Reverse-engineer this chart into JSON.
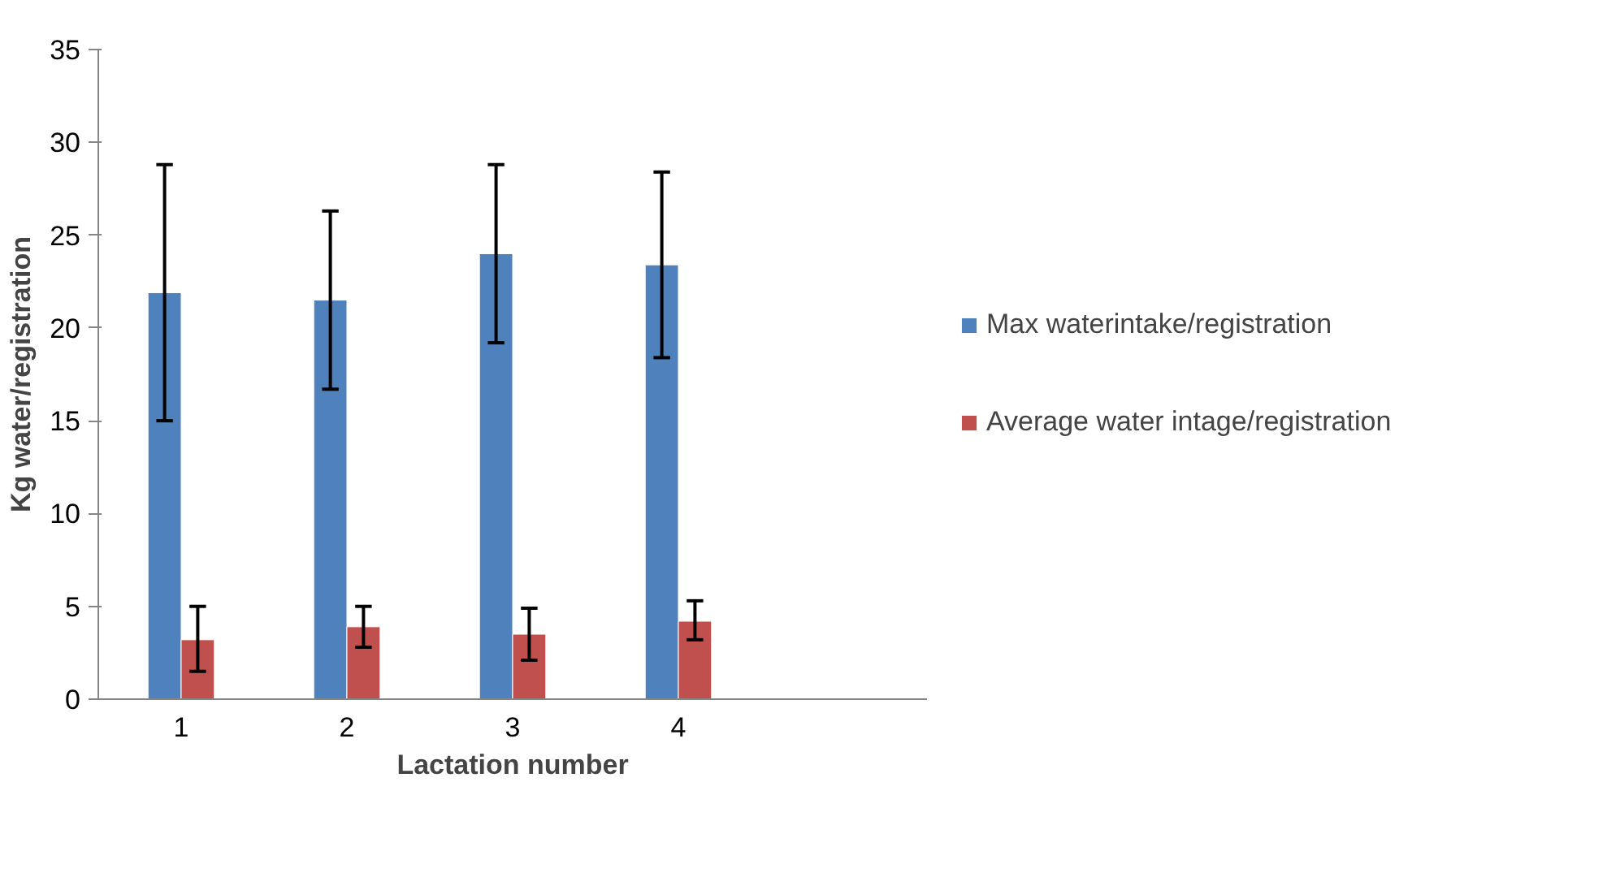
{
  "chart_data": {
    "type": "bar",
    "xlabel": "Lactation number",
    "ylabel": "Kg water/registration",
    "categories": [
      "1",
      "2",
      "3",
      "4",
      null
    ],
    "series": [
      {
        "name": "Max waterintake/registration",
        "color": "#4f81bd",
        "values": [
          21.9,
          21.5,
          24.0,
          23.4,
          null
        ],
        "errors": [
          [
            15.0,
            28.8
          ],
          [
            16.7,
            26.3
          ],
          [
            19.2,
            28.8
          ],
          [
            18.4,
            28.4
          ],
          null
        ]
      },
      {
        "name": "Average water intage/registration",
        "color": "#c0504d",
        "values": [
          3.2,
          3.9,
          3.5,
          4.2,
          null
        ],
        "errors": [
          [
            1.5,
            5.0
          ],
          [
            2.8,
            5.0
          ],
          [
            2.1,
            4.9
          ],
          [
            3.2,
            5.3
          ],
          null
        ]
      }
    ],
    "ylim": [
      0,
      35
    ],
    "yticks": [
      0,
      5,
      10,
      15,
      20,
      25,
      30,
      35
    ],
    "grid": false,
    "legend": "right"
  }
}
